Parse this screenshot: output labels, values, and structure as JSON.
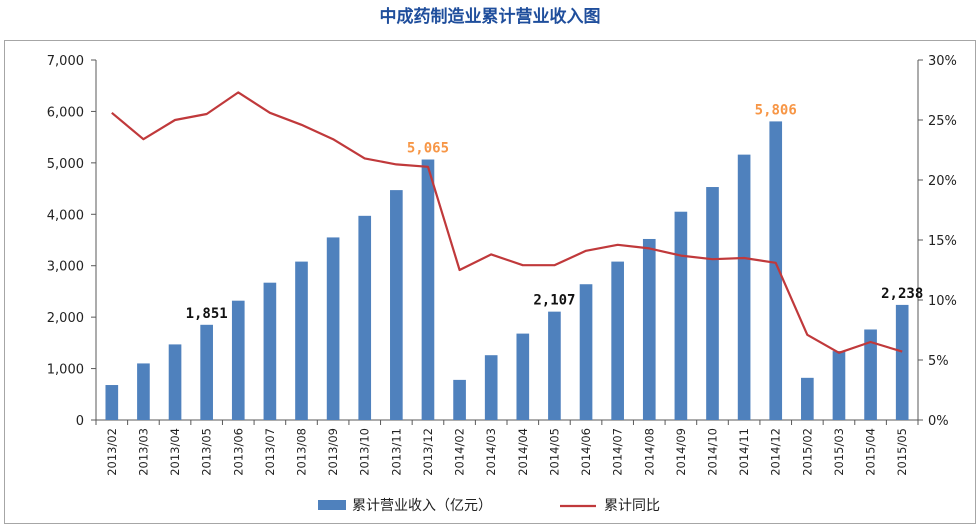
{
  "title": "中成药制造业累计营业收入图",
  "chart_data": {
    "type": "bar",
    "categories": [
      "2013/02",
      "2013/03",
      "2013/04",
      "2013/05",
      "2013/06",
      "2013/07",
      "2013/08",
      "2013/09",
      "2013/10",
      "2013/11",
      "2013/12",
      "2014/02",
      "2014/03",
      "2014/04",
      "2014/05",
      "2014/06",
      "2014/07",
      "2014/08",
      "2014/09",
      "2014/10",
      "2014/11",
      "2014/12",
      "2015/02",
      "2015/03",
      "2015/04",
      "2015/05"
    ],
    "series": [
      {
        "name": "累计营业收入（亿元）",
        "type": "bar",
        "axis": "left",
        "color": "#4f81bd",
        "values": [
          680,
          1100,
          1470,
          1851,
          2320,
          2670,
          3080,
          3550,
          3970,
          4470,
          5065,
          780,
          1260,
          1680,
          2107,
          2640,
          3080,
          3520,
          4050,
          4530,
          5160,
          5806,
          820,
          1340,
          1760,
          2238
        ]
      },
      {
        "name": "累计同比",
        "type": "line",
        "axis": "right",
        "color": "#c0393b",
        "values": [
          25.6,
          23.4,
          25.0,
          25.5,
          27.3,
          25.6,
          24.6,
          23.4,
          21.8,
          21.3,
          21.1,
          12.5,
          13.8,
          12.9,
          12.9,
          14.1,
          14.6,
          14.3,
          13.7,
          13.4,
          13.5,
          13.1,
          7.1,
          5.6,
          6.5,
          5.7
        ]
      }
    ],
    "y_left": {
      "ylim": [
        0,
        7000
      ],
      "ticks": [
        "0",
        "1,000",
        "2,000",
        "3,000",
        "4,000",
        "5,000",
        "6,000",
        "7,000"
      ]
    },
    "y_right": {
      "ylim": [
        0,
        30
      ],
      "ticks": [
        "0%",
        "5%",
        "10%",
        "15%",
        "20%",
        "25%",
        "30%"
      ]
    },
    "data_labels": [
      {
        "index": 3,
        "text": "1,851",
        "color": "#111111"
      },
      {
        "index": 10,
        "text": "5,065",
        "color": "#f79646"
      },
      {
        "index": 14,
        "text": "2,107",
        "color": "#111111"
      },
      {
        "index": 21,
        "text": "5,806",
        "color": "#f79646"
      },
      {
        "index": 25,
        "text": "2,238",
        "color": "#111111"
      }
    ],
    "legend": {
      "placement": "bottom"
    },
    "grid": false
  }
}
